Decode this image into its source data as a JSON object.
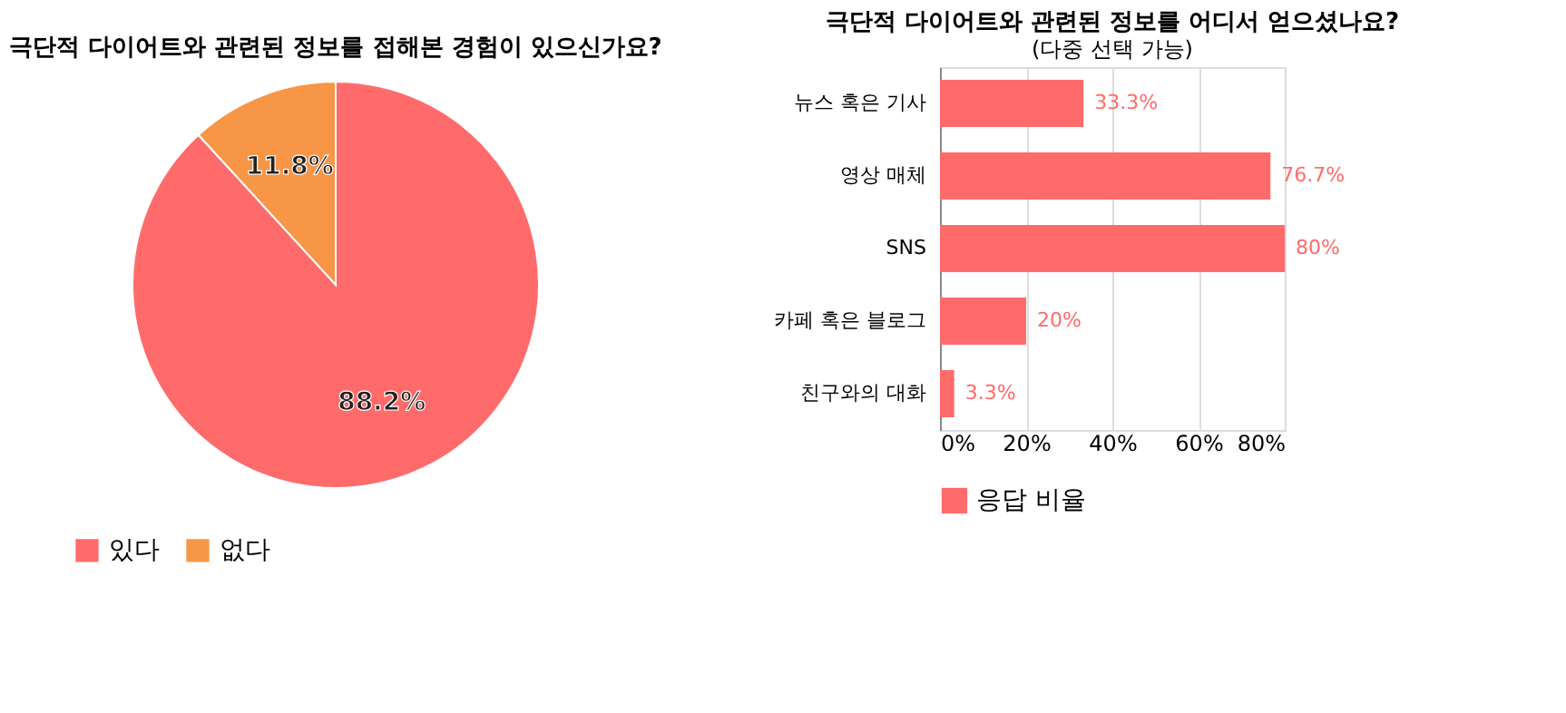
{
  "chart_data": [
    {
      "type": "pie",
      "title": "극단적 다이어트와 관련된 정보를 접해본 경험이 있으신가요?",
      "categories": [
        "있다",
        "없다"
      ],
      "values": [
        88.2,
        11.8
      ],
      "colors": [
        "#ff6b6b",
        "#f79646"
      ],
      "value_labels": [
        "88.2%",
        "11.8%"
      ],
      "legend": "bottom"
    },
    {
      "type": "bar",
      "orientation": "horizontal",
      "title": "극단적 다이어트와 관련된 정보를 어디서 얻으셨나요?",
      "subtitle": "(다중 선택 가능)",
      "categories": [
        "뉴스 혹은 기사",
        "영상 매체",
        "SNS",
        "카페 혹은 블로그",
        "친구와의 대화"
      ],
      "series": [
        {
          "name": "응답 비율",
          "color": "#ff6b6b",
          "values": [
            33.3,
            76.7,
            80,
            20,
            3.3
          ],
          "value_labels": [
            "33.3%",
            "76.7%",
            "80%",
            "20%",
            "3.3%"
          ]
        }
      ],
      "xlim": [
        0,
        80
      ],
      "xticks": [
        {
          "value": 0,
          "label": "0%"
        },
        {
          "value": 20,
          "label": "20%"
        },
        {
          "value": 40,
          "label": "40%"
        },
        {
          "value": 60,
          "label": "60%"
        },
        {
          "value": 80,
          "label": "80%"
        }
      ],
      "grid": "x",
      "legend": "bottom"
    }
  ]
}
